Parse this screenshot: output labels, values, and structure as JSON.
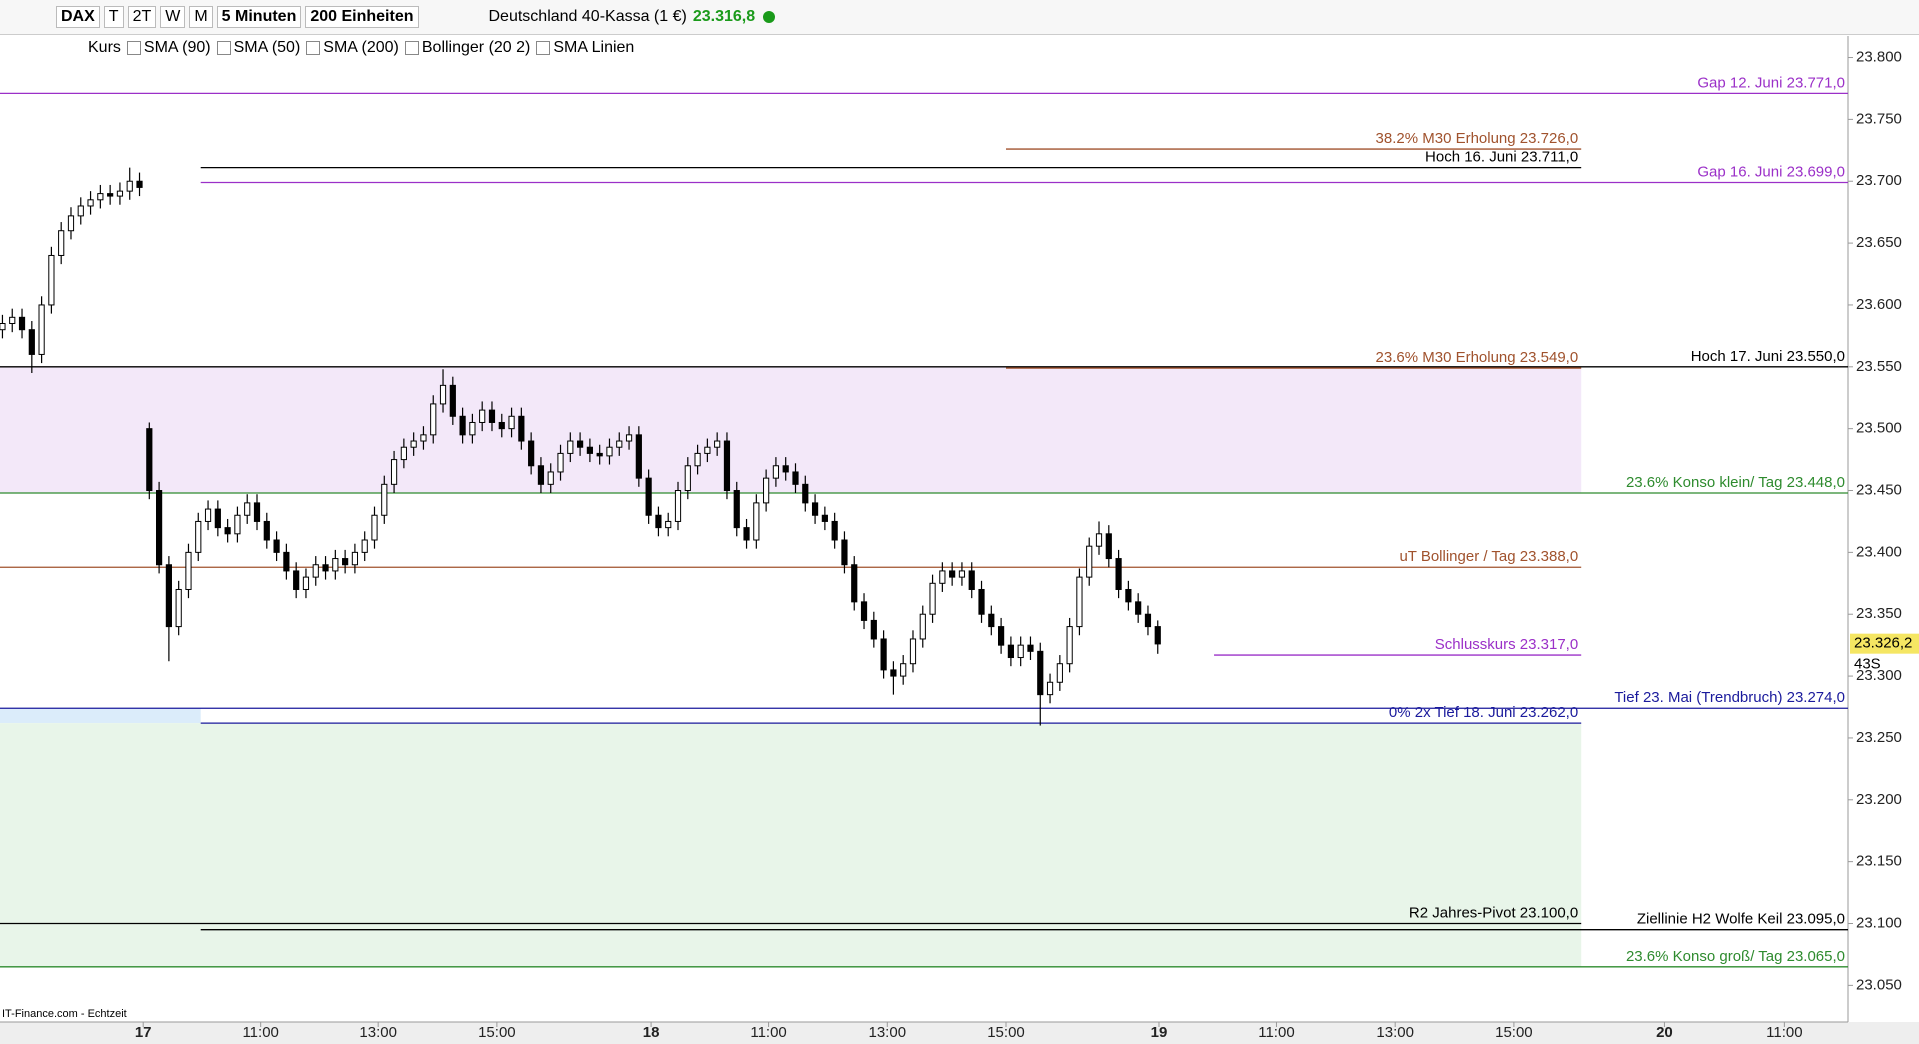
{
  "toolbar": {
    "symbol": "DAX",
    "periods": [
      "T",
      "2T",
      "W",
      "M"
    ],
    "interval": "5 Minuten",
    "units": "200 Einheiten",
    "instrument": "Deutschland 40-Kassa (1 €)",
    "price": "23.316,8",
    "indicators": [
      "Kurs",
      "SMA (90)",
      "SMA (50)",
      "SMA (200)",
      "Bollinger (20 2)",
      "SMA Linien"
    ]
  },
  "footer": "IT-Finance.com - Echtzeit",
  "chart_data": {
    "type": "candlestick",
    "x": [
      0,
      2,
      4,
      6,
      8,
      10,
      12,
      14,
      16,
      18,
      20,
      22,
      24,
      26,
      28,
      30,
      32,
      34,
      36,
      38,
      40,
      42,
      44,
      46,
      48,
      50,
      52,
      54,
      56,
      58,
      60,
      62,
      64,
      66,
      68,
      70,
      72,
      74,
      76,
      78,
      80,
      82,
      84,
      86,
      88,
      90,
      92,
      94,
      96,
      98,
      100,
      102,
      104,
      106,
      108,
      110,
      112,
      114,
      116,
      118,
      120,
      122,
      124,
      126,
      128,
      130,
      132,
      134,
      136,
      138,
      140,
      142,
      144,
      146,
      148,
      150,
      152,
      154,
      156,
      158,
      160,
      162,
      164,
      166,
      168,
      170,
      172,
      174,
      176,
      178,
      180,
      182,
      184,
      186,
      188,
      190,
      192,
      194,
      196,
      198,
      200,
      202,
      204,
      206,
      208,
      210,
      212,
      214,
      216,
      218,
      220,
      222,
      224,
      226,
      228,
      230,
      232,
      234,
      236
    ],
    "open": [
      23580,
      23585,
      23590,
      23580,
      23560,
      23600,
      23640,
      23660,
      23672,
      23680,
      23685,
      23690,
      23688,
      23692,
      23700,
      23500,
      23450,
      23390,
      23340,
      23370,
      23400,
      23425,
      23435,
      23420,
      23415,
      23430,
      23440,
      23425,
      23410,
      23400,
      23385,
      23370,
      23380,
      23390,
      23385,
      23395,
      23390,
      23400,
      23410,
      23430,
      23455,
      23475,
      23485,
      23490,
      23495,
      23520,
      23535,
      23510,
      23495,
      23505,
      23515,
      23505,
      23500,
      23510,
      23490,
      23470,
      23455,
      23465,
      23480,
      23490,
      23485,
      23480,
      23478,
      23485,
      23490,
      23495,
      23460,
      23430,
      23420,
      23425,
      23450,
      23470,
      23480,
      23485,
      23490,
      23450,
      23420,
      23410,
      23440,
      23460,
      23470,
      23465,
      23455,
      23440,
      23430,
      23425,
      23410,
      23390,
      23360,
      23345,
      23330,
      23305,
      23300,
      23310,
      23330,
      23350,
      23375,
      23385,
      23380,
      23385,
      23370,
      23350,
      23340,
      23325,
      23315,
      23325,
      23320,
      23285,
      23295,
      23310,
      23340,
      23380,
      23405,
      23415,
      23395,
      23370,
      23360,
      23350,
      23340
    ],
    "high": [
      23592,
      23597,
      23597,
      23587,
      23607,
      23647,
      23667,
      23679,
      23687,
      23692,
      23697,
      23697,
      23699,
      23711,
      23707,
      23505,
      23457,
      23397,
      23377,
      23407,
      23432,
      23442,
      23442,
      23427,
      23437,
      23447,
      23447,
      23432,
      23417,
      23407,
      23392,
      23387,
      23397,
      23397,
      23402,
      23402,
      23407,
      23417,
      23437,
      23462,
      23482,
      23492,
      23497,
      23502,
      23527,
      23548,
      23542,
      23517,
      23512,
      23522,
      23522,
      23512,
      23517,
      23517,
      23497,
      23477,
      23472,
      23487,
      23497,
      23497,
      23492,
      23487,
      23492,
      23497,
      23502,
      23502,
      23467,
      23437,
      23432,
      23457,
      23477,
      23487,
      23492,
      23497,
      23497,
      23457,
      23427,
      23447,
      23467,
      23477,
      23477,
      23472,
      23462,
      23447,
      23437,
      23432,
      23417,
      23397,
      23367,
      23352,
      23337,
      23312,
      23317,
      23337,
      23357,
      23382,
      23392,
      23392,
      23392,
      23392,
      23377,
      23357,
      23347,
      23332,
      23332,
      23332,
      23327,
      23302,
      23317,
      23347,
      23387,
      23412,
      23425,
      23422,
      23402,
      23377,
      23367,
      23357,
      23345
    ],
    "low": [
      23573,
      23578,
      23573,
      23545,
      23553,
      23593,
      23633,
      23653,
      23665,
      23673,
      23678,
      23681,
      23681,
      23685,
      23688,
      23443,
      23383,
      23312,
      23333,
      23363,
      23393,
      23418,
      23413,
      23408,
      23408,
      23423,
      23418,
      23403,
      23393,
      23378,
      23363,
      23363,
      23373,
      23378,
      23378,
      23383,
      23383,
      23393,
      23403,
      23423,
      23448,
      23468,
      23478,
      23483,
      23488,
      23513,
      23503,
      23488,
      23488,
      23498,
      23498,
      23493,
      23493,
      23483,
      23463,
      23448,
      23448,
      23458,
      23473,
      23478,
      23473,
      23471,
      23471,
      23478,
      23483,
      23453,
      23423,
      23413,
      23413,
      23418,
      23443,
      23463,
      23473,
      23478,
      23443,
      23413,
      23403,
      23403,
      23433,
      23453,
      23458,
      23448,
      23433,
      23423,
      23418,
      23403,
      23383,
      23353,
      23338,
      23323,
      23298,
      23285,
      23293,
      23303,
      23323,
      23343,
      23368,
      23373,
      23373,
      23363,
      23343,
      23333,
      23318,
      23308,
      23308,
      23313,
      23260,
      23278,
      23288,
      23303,
      23333,
      23373,
      23398,
      23388,
      23363,
      23353,
      23343,
      23333,
      23318
    ],
    "close": [
      23585,
      23590,
      23580,
      23560,
      23600,
      23640,
      23660,
      23672,
      23680,
      23685,
      23690,
      23688,
      23692,
      23700,
      23695,
      23450,
      23390,
      23340,
      23370,
      23400,
      23425,
      23435,
      23420,
      23415,
      23430,
      23440,
      23425,
      23410,
      23400,
      23385,
      23370,
      23380,
      23390,
      23385,
      23395,
      23390,
      23400,
      23410,
      23430,
      23455,
      23475,
      23485,
      23490,
      23495,
      23520,
      23535,
      23510,
      23495,
      23505,
      23515,
      23505,
      23500,
      23510,
      23490,
      23470,
      23455,
      23465,
      23480,
      23490,
      23485,
      23480,
      23478,
      23485,
      23490,
      23495,
      23460,
      23430,
      23420,
      23425,
      23450,
      23470,
      23480,
      23485,
      23490,
      23450,
      23420,
      23410,
      23440,
      23460,
      23470,
      23465,
      23455,
      23440,
      23430,
      23425,
      23410,
      23390,
      23360,
      23345,
      23330,
      23305,
      23300,
      23310,
      23330,
      23350,
      23375,
      23385,
      23380,
      23385,
      23370,
      23350,
      23340,
      23325,
      23315,
      23325,
      23320,
      23285,
      23295,
      23310,
      23340,
      23380,
      23405,
      23415,
      23395,
      23370,
      23360,
      23350,
      23340,
      23326
    ],
    "up_color": "#ffffff",
    "down_color": "#000000",
    "xlim": [
      0,
      377.5
    ],
    "ylim": [
      23022,
      23798
    ],
    "xticks": [
      {
        "value": 29.25,
        "label": "17"
      },
      {
        "value": 53.25,
        "label": "11:00"
      },
      {
        "value": 77.25,
        "label": "13:00"
      },
      {
        "value": 101.5,
        "label": "15:00"
      },
      {
        "value": 133,
        "label": "18"
      },
      {
        "value": 157,
        "label": "11:00"
      },
      {
        "value": 181.25,
        "label": "13:00"
      },
      {
        "value": 205.5,
        "label": "15:00"
      },
      {
        "value": 236.75,
        "label": "19"
      },
      {
        "value": 260.75,
        "label": "11:00"
      },
      {
        "value": 285,
        "label": "13:00"
      },
      {
        "value": 309.25,
        "label": "15:00"
      },
      {
        "value": 340,
        "label": "20"
      },
      {
        "value": 364.5,
        "label": "11:00"
      }
    ],
    "yticks": [
      {
        "value": 23800,
        "label": "23.800"
      },
      {
        "value": 23750,
        "label": "23.750"
      },
      {
        "value": 23700,
        "label": "23.700"
      },
      {
        "value": 23650,
        "label": "23.650"
      },
      {
        "value": 23600,
        "label": "23.600"
      },
      {
        "value": 23550,
        "label": "23.550"
      },
      {
        "value": 23500,
        "label": "23.500"
      },
      {
        "value": 23450,
        "label": "23.450"
      },
      {
        "value": 23400,
        "label": "23.400"
      },
      {
        "value": 23350,
        "label": "23.350"
      },
      {
        "value": 23300,
        "label": "23.300"
      },
      {
        "value": 23250,
        "label": "23.250"
      },
      {
        "value": 23200,
        "label": "23.200"
      },
      {
        "value": 23150,
        "label": "23.150"
      },
      {
        "value": 23100,
        "label": "23.100"
      },
      {
        "value": 23050,
        "label": "23.050"
      }
    ],
    "zones": [
      {
        "low": 23448,
        "high": 23550,
        "start": 0,
        "end": 323,
        "color": "#f3e8f9"
      },
      {
        "low": 23262,
        "high": 23274,
        "start": 0,
        "end": 41,
        "color": "#dbecfa"
      },
      {
        "low": 23065,
        "high": 23262,
        "start": 0,
        "end": 323,
        "color": "#e8f5e9"
      }
    ],
    "levels": [
      {
        "label": "Gap 12. Juni 23.771,0",
        "value": 23771,
        "start": 0,
        "end": 377.5,
        "color": "#9b30c8"
      },
      {
        "label": "38.2%  M30 Erholung 23.726,0",
        "value": 23726,
        "start": 205.5,
        "end": 323,
        "color": "#a0522d"
      },
      {
        "label": "Hoch 16. Juni 23.711,0",
        "value": 23711,
        "start": 41,
        "end": 323,
        "color": "#000000"
      },
      {
        "label": "Gap 16. Juni 23.699,0",
        "value": 23699,
        "start": 41,
        "end": 377.5,
        "color": "#9b30c8"
      },
      {
        "label": "Hoch 17. Juni 23.550,0",
        "value": 23550,
        "start": 0,
        "end": 377.5,
        "color": "#000000"
      },
      {
        "label": "23.6%  M30 Erholung 23.549,0",
        "value": 23549,
        "start": 205.5,
        "end": 323,
        "color": "#a0522d"
      },
      {
        "label": "23.6% Konso klein/ Tag 23.448,0",
        "value": 23448,
        "start": 0,
        "end": 377.5,
        "color": "#2e8b2e"
      },
      {
        "label": "uT Bollinger / Tag 23.388,0",
        "value": 23388,
        "start": 0,
        "end": 323,
        "color": "#a0522d"
      },
      {
        "label": "Schlusskurs 23.317,0",
        "value": 23317,
        "start": 248,
        "end": 323,
        "color": "#9b30c8"
      },
      {
        "label": "Tief 23. Mai (Trendbruch)  23.274,0",
        "value": 23274,
        "start": 0,
        "end": 377.5,
        "color": "#1a1a9c"
      },
      {
        "label": "0%  2x Tief 18. Juni 23.262,0",
        "value": 23262,
        "start": 41,
        "end": 323,
        "color": "#1a1a9c"
      },
      {
        "label": "R2 Jahres-Pivot  23.100,0",
        "value": 23100,
        "start": 0,
        "end": 323,
        "color": "#000000"
      },
      {
        "label": "Ziellinie H2 Wolfe Keil 23.095,0",
        "value": 23095,
        "start": 41,
        "end": 377.5,
        "color": "#000000"
      },
      {
        "label": "23.6% Konso groß/ Tag 23.065,0",
        "value": 23065,
        "start": 0,
        "end": 377.5,
        "color": "#2e8b2e"
      }
    ],
    "last_price": 23326.2,
    "last_price_label": "23.326,2",
    "countdown": "43S"
  }
}
